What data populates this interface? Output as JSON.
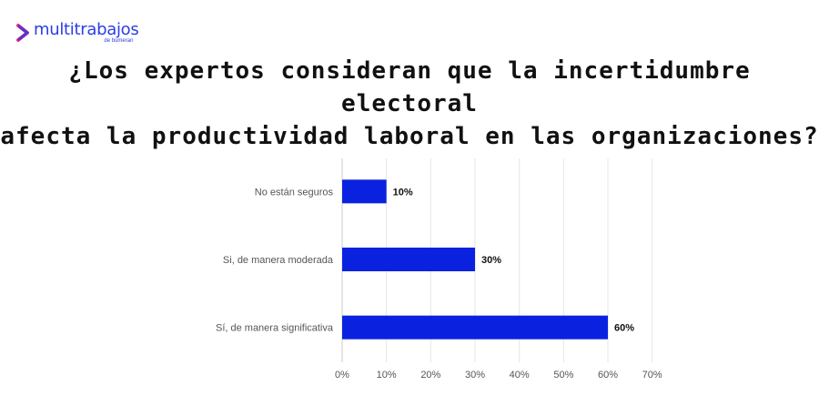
{
  "brand": {
    "name": "multitrabajos",
    "subtitle": "de bumeran",
    "icon": "chevron-right-brand-icon",
    "color": "#2a3de8"
  },
  "chart_data": {
    "type": "bar",
    "orientation": "horizontal",
    "title": "¿Los expertos consideran que la incertidumbre electoral afecta la productividad laboral en las organizaciones?",
    "title_lines": [
      "¿Los expertos consideran que la incertidumbre electoral",
      "afecta la productividad laboral en las organizaciones?"
    ],
    "categories": [
      "No están seguros",
      "Si, de manera moderada",
      "Sí, de manera significativa"
    ],
    "values": [
      10,
      30,
      60
    ],
    "data_labels": [
      "10%",
      "30%",
      "60%"
    ],
    "xlabel": "",
    "ylabel": "",
    "xlim": [
      0,
      70
    ],
    "x_ticks": [
      0,
      10,
      20,
      30,
      40,
      50,
      60,
      70
    ],
    "x_tick_labels": [
      "0%",
      "10%",
      "20%",
      "30%",
      "40%",
      "50%",
      "60%",
      "70%"
    ],
    "grid": true,
    "legend": "none",
    "bar_color": "#0a22e0"
  }
}
